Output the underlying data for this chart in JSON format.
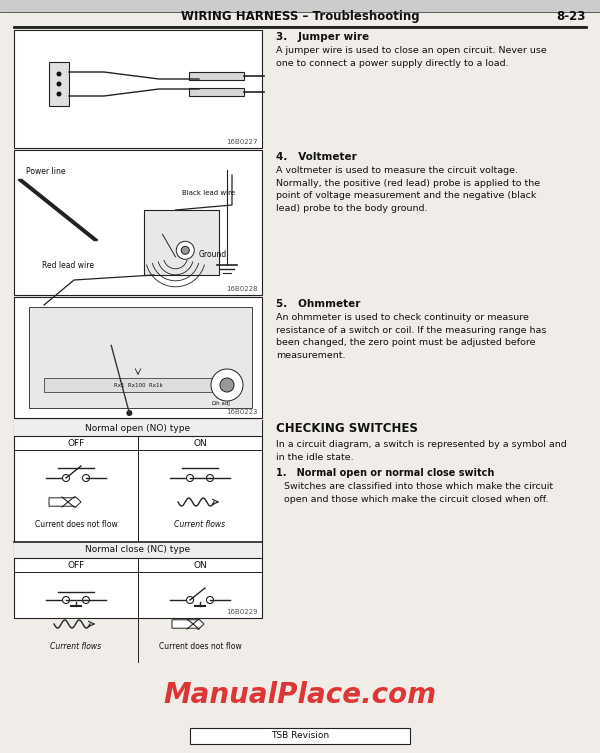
{
  "page_bg": "#f0ede8",
  "title": "WIRING HARNESS – Troubleshooting",
  "page_num": "8-23",
  "section3_title": "3.   Jumper wire",
  "section3_text": "A jumper wire is used to close an open circuit. Never use\none to connect a power supply directly to a load.",
  "section4_title": "4.   Voltmeter",
  "section4_text": "A voltmeter is used to measure the circuit voltage.\nNormally, the positive (red lead) probe is applied to the\npoint of voltage measurement and the negative (black\nlead) probe to the body ground.",
  "section5_title": "5.   Ohmmeter",
  "section5_text": "An ohmmeter is used to check continuity or measure\nresistance of a switch or coil. If the measuring range has\nbeen changed, the zero point must be adjusted before\nmeasurement.",
  "checking_title": "CHECKING SWITCHES",
  "checking_intro": "In a circuit diagram, a switch is represented by a symbol and\nin the idle state.",
  "subsection1_title": "1.   Normal open or normal close switch",
  "subsection1_text": "Switches are classified into those which make the circuit\nopen and those which make the circuit closed when off.",
  "img1_code": "16B0227",
  "img2_code": "16B0228",
  "img3_code": "16B0223",
  "img4_code": "16B0229",
  "img2_label1": "Power line",
  "img2_label2": "Black lead wire",
  "img2_label3": "Red lead wire",
  "img2_label4": "Ground",
  "no_type_header": "Normal open (NO) type",
  "nc_type_header": "Normal close (NC) type",
  "off_label": "OFF",
  "on_label": "ON",
  "current_not_flow": "Current does not flow",
  "current_flows": "Current flows",
  "watermark": "ManualPlace.com",
  "footer": "TSB Revision",
  "text_color": "#111111",
  "border_color": "#222222",
  "watermark_color": "#dd2222",
  "header_bg": "#cccccc"
}
